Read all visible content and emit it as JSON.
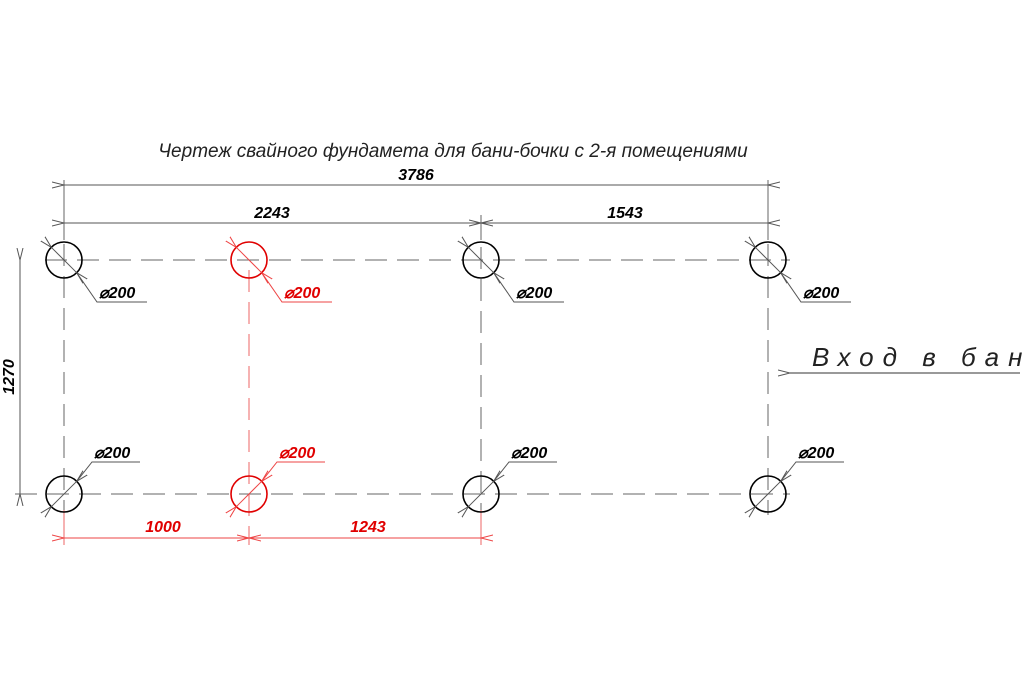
{
  "title": "Чертеж свайного фундамета для бани-бочки с 2-я помещениями",
  "dimensions": {
    "overall_length": "3786",
    "left_span": "2243",
    "right_span": "1543",
    "width": "1270",
    "red_left": "1000",
    "red_right": "1243"
  },
  "pile_label": "⌀200",
  "entrance_label": "Вход в баню",
  "colors": {
    "black": "#000000",
    "red": "#e00000",
    "gray": "#555555"
  },
  "piles": [
    {
      "row": "top",
      "column": 1,
      "color": "black"
    },
    {
      "row": "top",
      "column": 2,
      "color": "red"
    },
    {
      "row": "top",
      "column": 3,
      "color": "black"
    },
    {
      "row": "top",
      "column": 4,
      "color": "black"
    },
    {
      "row": "bottom",
      "column": 1,
      "color": "black"
    },
    {
      "row": "bottom",
      "column": 2,
      "color": "red"
    },
    {
      "row": "bottom",
      "column": 3,
      "color": "black"
    },
    {
      "row": "bottom",
      "column": 4,
      "color": "black"
    }
  ]
}
